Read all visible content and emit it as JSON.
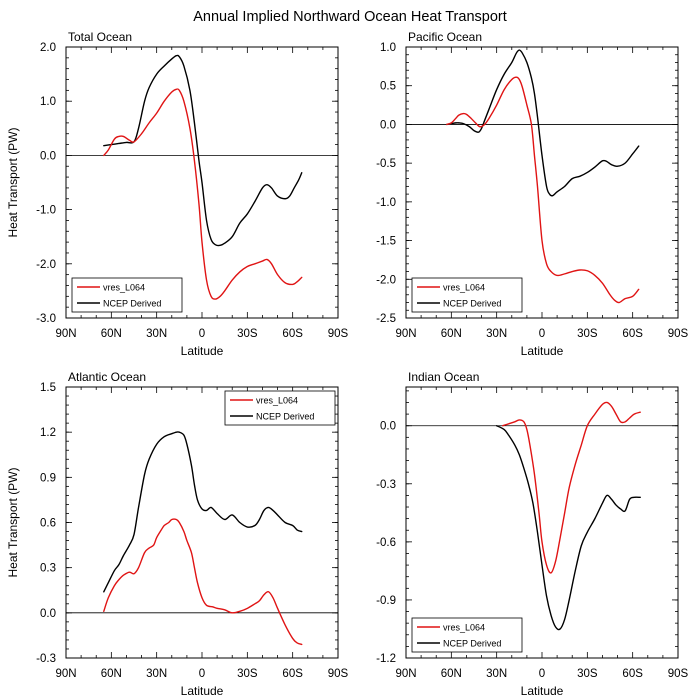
{
  "figure_title": "Annual Implied Northward Ocean Heat Transport",
  "colors": {
    "model": "#e01414",
    "ncep": "#000000",
    "zero_line": "#000000"
  },
  "chart_data": [
    {
      "type": "line",
      "title": "Total Ocean",
      "xlabel": "Latitude",
      "ylabel": "Heat Transport (PW)",
      "x_unit": "latitude (N positive)",
      "xlim": [
        90,
        -90
      ],
      "xticks": [
        90,
        60,
        30,
        0,
        -30,
        -60,
        -90
      ],
      "xtick_labels": [
        "90N",
        "60N",
        "30N",
        "0",
        "30S",
        "60S",
        "90S"
      ],
      "ylim": [
        -3.0,
        2.0
      ],
      "yticks": [
        2.0,
        1.0,
        0.0,
        -1.0,
        -2.0,
        -3.0
      ],
      "ytick_labels": [
        "2.0",
        "1.0",
        "0.0",
        "-1.0",
        "-2.0",
        "-3.0"
      ],
      "legend": {
        "position": "bottom-left",
        "entries": [
          "vres_L064",
          "NCEP Derived"
        ]
      },
      "series": [
        {
          "name": "vres_L064",
          "color": "#e01414",
          "x": [
            65,
            62,
            58,
            55,
            52,
            48,
            45,
            40,
            35,
            30,
            25,
            20,
            17,
            15,
            12,
            8,
            5,
            2,
            0,
            -3,
            -6,
            -9,
            -12,
            -15,
            -20,
            -25,
            -30,
            -35,
            -40,
            -43,
            -46,
            -50,
            -55,
            -60,
            -63,
            -66
          ],
          "y": [
            0.0,
            0.1,
            0.3,
            0.35,
            0.35,
            0.28,
            0.25,
            0.4,
            0.6,
            0.78,
            1.0,
            1.17,
            1.22,
            1.2,
            1.0,
            0.5,
            -0.1,
            -0.9,
            -1.6,
            -2.3,
            -2.6,
            -2.65,
            -2.6,
            -2.5,
            -2.3,
            -2.15,
            -2.05,
            -2.0,
            -1.95,
            -1.92,
            -2.0,
            -2.2,
            -2.35,
            -2.38,
            -2.33,
            -2.25
          ]
        },
        {
          "name": "NCEP Derived",
          "color": "#000000",
          "x": [
            65,
            60,
            55,
            50,
            45,
            42,
            38,
            35,
            30,
            25,
            20,
            17,
            15,
            12,
            8,
            5,
            2,
            0,
            -3,
            -6,
            -9,
            -12,
            -15,
            -20,
            -25,
            -30,
            -35,
            -40,
            -43,
            -46,
            -50,
            -55,
            -58,
            -61,
            -64,
            -66
          ],
          "y": [
            0.18,
            0.2,
            0.22,
            0.24,
            0.25,
            0.5,
            1.0,
            1.25,
            1.5,
            1.65,
            1.78,
            1.84,
            1.82,
            1.65,
            1.2,
            0.6,
            -0.1,
            -0.5,
            -1.2,
            -1.55,
            -1.65,
            -1.66,
            -1.62,
            -1.5,
            -1.25,
            -1.08,
            -0.85,
            -0.6,
            -0.54,
            -0.6,
            -0.75,
            -0.8,
            -0.75,
            -0.6,
            -0.45,
            -0.32
          ]
        }
      ]
    },
    {
      "type": "line",
      "title": "Pacific Ocean",
      "xlabel": "Latitude",
      "ylabel": "",
      "xlim": [
        90,
        -90
      ],
      "xticks": [
        90,
        60,
        30,
        0,
        -30,
        -60,
        -90
      ],
      "xtick_labels": [
        "90N",
        "60N",
        "30N",
        "0",
        "30S",
        "60S",
        "90S"
      ],
      "ylim": [
        -2.5,
        1.0
      ],
      "yticks": [
        1.0,
        0.5,
        0.0,
        -0.5,
        -1.0,
        -1.5,
        -2.0,
        -2.5
      ],
      "ytick_labels": [
        "1.0",
        "0.5",
        "0.0",
        "-0.5",
        "-1.0",
        "-1.5",
        "-2.0",
        "-2.5"
      ],
      "legend": {
        "position": "bottom-left",
        "entries": [
          "vres_L064",
          "NCEP Derived"
        ]
      },
      "series": [
        {
          "name": "vres_L064",
          "color": "#e01414",
          "x": [
            63,
            60,
            57,
            55,
            52,
            50,
            47,
            44,
            41,
            38,
            35,
            30,
            25,
            20,
            17,
            15,
            13,
            10,
            7,
            5,
            3,
            0,
            -3,
            -6,
            -10,
            -15,
            -20,
            -25,
            -30,
            -35,
            -40,
            -45,
            -48,
            -51,
            -55,
            -60,
            -64
          ],
          "y": [
            0.0,
            0.02,
            0.08,
            0.12,
            0.14,
            0.13,
            0.08,
            0.02,
            -0.03,
            0.0,
            0.08,
            0.25,
            0.45,
            0.58,
            0.61,
            0.58,
            0.48,
            0.25,
            0.0,
            -0.4,
            -0.8,
            -1.5,
            -1.8,
            -1.9,
            -1.95,
            -1.93,
            -1.9,
            -1.88,
            -1.89,
            -1.95,
            -2.05,
            -2.2,
            -2.27,
            -2.3,
            -2.25,
            -2.22,
            -2.13
          ]
        },
        {
          "name": "NCEP Derived",
          "color": "#000000",
          "x": [
            63,
            60,
            57,
            55,
            52,
            48,
            45,
            42,
            40,
            38,
            35,
            30,
            25,
            20,
            17,
            15,
            13,
            10,
            7,
            5,
            3,
            0,
            -3,
            -5,
            -7,
            -10,
            -15,
            -20,
            -25,
            -30,
            -35,
            -40,
            -43,
            -46,
            -50,
            -55,
            -60,
            -64
          ],
          "y": [
            0.0,
            0.01,
            0.02,
            0.02,
            0.01,
            -0.03,
            -0.08,
            -0.1,
            -0.05,
            0.05,
            0.2,
            0.45,
            0.65,
            0.8,
            0.92,
            0.96,
            0.92,
            0.8,
            0.6,
            0.4,
            0.1,
            -0.4,
            -0.8,
            -0.9,
            -0.92,
            -0.87,
            -0.8,
            -0.7,
            -0.67,
            -0.62,
            -0.55,
            -0.47,
            -0.48,
            -0.52,
            -0.54,
            -0.5,
            -0.38,
            -0.28
          ]
        }
      ]
    },
    {
      "type": "line",
      "title": "Atlantic Ocean",
      "xlabel": "Latitude",
      "ylabel": "Heat Transport (PW)",
      "xlim": [
        90,
        -90
      ],
      "xticks": [
        90,
        60,
        30,
        0,
        -30,
        -60,
        -90
      ],
      "xtick_labels": [
        "90N",
        "60N",
        "30N",
        "0",
        "30S",
        "60S",
        "90S"
      ],
      "ylim": [
        -0.3,
        1.5
      ],
      "yticks": [
        1.5,
        1.2,
        0.9,
        0.6,
        0.3,
        0.0,
        -0.3
      ],
      "ytick_labels": [
        "1.5",
        "1.2",
        "0.9",
        "0.6",
        "0.3",
        "0.0",
        "-0.3"
      ],
      "legend": {
        "position": "top-right",
        "entries": [
          "vres_L064",
          "NCEP Derived"
        ]
      },
      "series": [
        {
          "name": "vres_L064",
          "color": "#e01414",
          "x": [
            65,
            62,
            58,
            55,
            52,
            48,
            45,
            42,
            38,
            35,
            32,
            30,
            27,
            25,
            22,
            20,
            17,
            15,
            12,
            10,
            7,
            5,
            3,
            0,
            -3,
            -7,
            -10,
            -15,
            -20,
            -25,
            -30,
            -35,
            -38,
            -41,
            -44,
            -47,
            -50,
            -55,
            -60,
            -63,
            -66
          ],
          "y": [
            0.01,
            0.1,
            0.18,
            0.22,
            0.25,
            0.27,
            0.26,
            0.3,
            0.4,
            0.43,
            0.45,
            0.5,
            0.55,
            0.58,
            0.6,
            0.62,
            0.62,
            0.6,
            0.54,
            0.48,
            0.4,
            0.3,
            0.2,
            0.1,
            0.05,
            0.04,
            0.03,
            0.02,
            0.0,
            0.01,
            0.03,
            0.06,
            0.08,
            0.12,
            0.14,
            0.1,
            0.03,
            -0.08,
            -0.17,
            -0.2,
            -0.21
          ]
        },
        {
          "name": "NCEP Derived",
          "color": "#000000",
          "x": [
            65,
            62,
            58,
            55,
            52,
            48,
            45,
            42,
            38,
            35,
            30,
            25,
            20,
            17,
            15,
            12,
            10,
            7,
            5,
            3,
            0,
            -3,
            -6,
            -10,
            -15,
            -20,
            -25,
            -30,
            -35,
            -38,
            -41,
            -44,
            -47,
            -50,
            -55,
            -60,
            -63,
            -66
          ],
          "y": [
            0.14,
            0.2,
            0.28,
            0.32,
            0.38,
            0.45,
            0.52,
            0.7,
            0.92,
            1.02,
            1.12,
            1.17,
            1.19,
            1.2,
            1.2,
            1.18,
            1.12,
            0.98,
            0.85,
            0.75,
            0.69,
            0.68,
            0.7,
            0.66,
            0.62,
            0.65,
            0.6,
            0.57,
            0.58,
            0.62,
            0.68,
            0.7,
            0.68,
            0.65,
            0.6,
            0.58,
            0.55,
            0.54
          ]
        }
      ]
    },
    {
      "type": "line",
      "title": "Indian Ocean",
      "xlabel": "Latitude",
      "ylabel": "",
      "xlim": [
        90,
        -90
      ],
      "xticks": [
        90,
        60,
        30,
        0,
        -30,
        -60,
        -90
      ],
      "xtick_labels": [
        "90N",
        "60N",
        "30N",
        "0",
        "30S",
        "60S",
        "90S"
      ],
      "ylim": [
        -1.2,
        0.2
      ],
      "yticks": [
        0.0,
        -0.3,
        -0.6,
        -0.9,
        -1.2
      ],
      "ytick_labels": [
        "0.0",
        "-0.3",
        "-0.6",
        "-0.9",
        "-1.2"
      ],
      "legend": {
        "position": "bottom-left",
        "entries": [
          "vres_L064",
          "NCEP Derived"
        ]
      },
      "series": [
        {
          "name": "vres_L064",
          "color": "#e01414",
          "x": [
            26,
            22,
            18,
            15,
            12,
            10,
            8,
            5,
            2,
            0,
            -3,
            -6,
            -9,
            -12,
            -15,
            -18,
            -22,
            -26,
            -30,
            -35,
            -40,
            -43,
            -46,
            -49,
            -52,
            -55,
            -58,
            -61,
            -65
          ],
          "y": [
            0.0,
            0.01,
            0.02,
            0.03,
            0.02,
            -0.02,
            -0.1,
            -0.25,
            -0.45,
            -0.6,
            -0.72,
            -0.76,
            -0.7,
            -0.58,
            -0.45,
            -0.32,
            -0.2,
            -0.1,
            0.0,
            0.06,
            0.11,
            0.12,
            0.1,
            0.06,
            0.02,
            0.02,
            0.04,
            0.06,
            0.07
          ]
        },
        {
          "name": "NCEP Derived",
          "color": "#000000",
          "x": [
            30,
            25,
            22,
            18,
            15,
            12,
            9,
            6,
            3,
            0,
            -3,
            -6,
            -9,
            -12,
            -15,
            -18,
            -22,
            -26,
            -30,
            -35,
            -40,
            -43,
            -46,
            -49,
            -52,
            -55,
            -58,
            -61,
            -65
          ],
          "y": [
            0.0,
            -0.02,
            -0.05,
            -0.1,
            -0.15,
            -0.22,
            -0.3,
            -0.4,
            -0.55,
            -0.72,
            -0.88,
            -0.98,
            -1.04,
            -1.05,
            -1.0,
            -0.9,
            -0.75,
            -0.62,
            -0.55,
            -0.48,
            -0.4,
            -0.36,
            -0.38,
            -0.41,
            -0.43,
            -0.44,
            -0.38,
            -0.37,
            -0.37
          ]
        }
      ]
    }
  ]
}
